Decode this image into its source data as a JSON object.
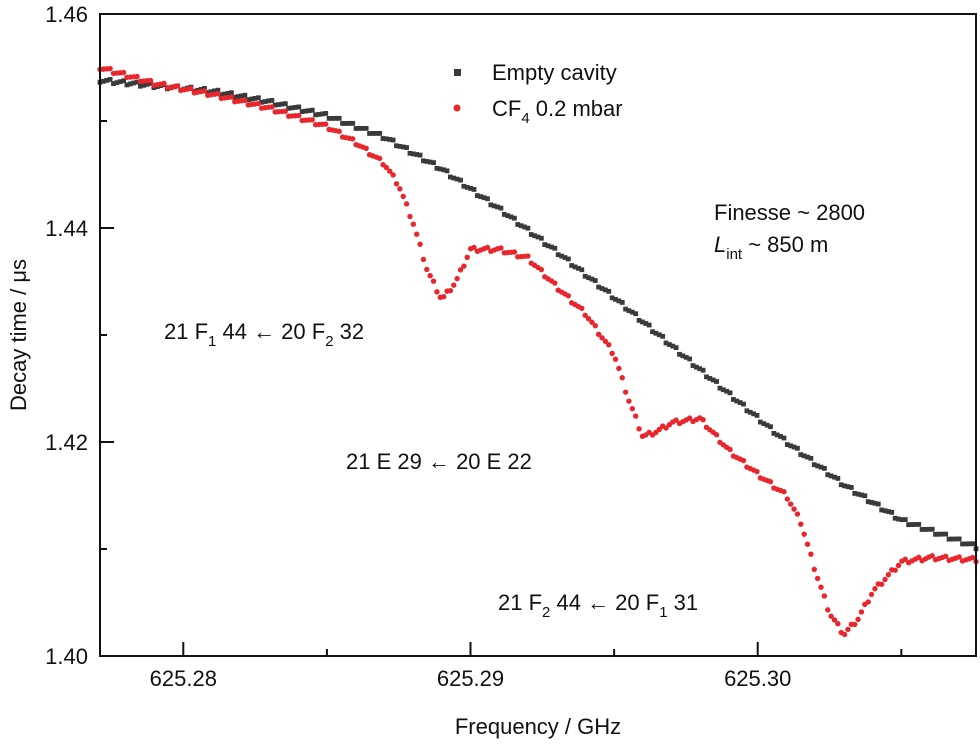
{
  "chart_data": {
    "type": "scatter",
    "xlabel": "Frequency / GHz",
    "ylabel": "Decay time / μs",
    "xlim": [
      625.2771,
      625.3076
    ],
    "ylim": [
      1.4,
      1.46
    ],
    "x_ticks": [
      625.28,
      625.29,
      625.3
    ],
    "x_tick_labels": [
      "625.28",
      "625.29",
      "625.30"
    ],
    "y_ticks": [
      1.4,
      1.42,
      1.44,
      1.46
    ],
    "y_tick_labels": [
      "1.40",
      "1.42",
      "1.44",
      "1.46"
    ],
    "legend": {
      "placement": "top-center"
    },
    "series": [
      {
        "name": "Empty cavity",
        "legend_label": {
          "main": "Empty cavity",
          "sub": "",
          "rest": ""
        },
        "color": "#3a3a3a",
        "marker": "square",
        "x": [
          625.2771,
          625.279,
          625.281,
          625.283,
          625.285,
          625.287,
          625.289,
          625.291,
          625.293,
          625.295,
          625.297,
          625.299,
          625.301,
          625.303,
          625.305,
          625.3076
        ],
        "y": [
          1.4538,
          1.4533,
          1.4528,
          1.4518,
          1.4505,
          1.4485,
          1.4455,
          1.4418,
          1.4378,
          1.4335,
          1.429,
          1.4245,
          1.42,
          1.416,
          1.4127,
          1.4102
        ]
      },
      {
        "name": "CF4 0.2 mbar",
        "legend_label": {
          "main": "CF",
          "sub": "4",
          "rest": " 0.2 mbar"
        },
        "color": "#e8262c",
        "marker": "circle",
        "x": [
          625.2771,
          625.279,
          625.281,
          625.283,
          625.285,
          625.286,
          625.287,
          625.2875,
          625.288,
          625.2885,
          625.289,
          625.2895,
          625.29,
          625.291,
          625.292,
          625.293,
          625.294,
          625.295,
          625.2955,
          625.296,
          625.2965,
          625.297,
          625.298,
          625.299,
          625.3,
          625.301,
          625.3015,
          625.302,
          625.3025,
          625.303,
          625.3035,
          625.304,
          625.305,
          625.306,
          625.3076
        ],
        "y": [
          1.455,
          1.4535,
          1.4525,
          1.4512,
          1.4495,
          1.448,
          1.446,
          1.444,
          1.4405,
          1.436,
          1.4333,
          1.435,
          1.438,
          1.438,
          1.4372,
          1.4345,
          1.432,
          1.4282,
          1.424,
          1.4205,
          1.421,
          1.4218,
          1.4222,
          1.4192,
          1.417,
          1.415,
          1.4125,
          1.408,
          1.404,
          1.402,
          1.4035,
          1.406,
          1.4088,
          1.4092,
          1.409
        ]
      }
    ],
    "annotations": [
      {
        "parts": [
          {
            "t": "Finesse ~ 2800",
            "s": "normal"
          }
        ]
      },
      {
        "parts": [
          {
            "t": "L",
            "s": "italic"
          },
          {
            "t": "int",
            "s": "sub"
          },
          {
            "t": " ~ 850 m",
            "s": "normal"
          }
        ]
      },
      {
        "parts": [
          {
            "t": "21 F",
            "s": "normal"
          },
          {
            "t": "1",
            "s": "sub"
          },
          {
            "t": " 44 ← 20 F",
            "s": "normal"
          },
          {
            "t": "2",
            "s": "sub"
          },
          {
            "t": " 32",
            "s": "normal"
          }
        ]
      },
      {
        "parts": [
          {
            "t": "21 E 29 ← 20 E 22",
            "s": "normal"
          }
        ]
      },
      {
        "parts": [
          {
            "t": "21 F",
            "s": "normal"
          },
          {
            "t": "2",
            "s": "sub"
          },
          {
            "t": " 44 ← 20 F",
            "s": "normal"
          },
          {
            "t": "1",
            "s": "sub"
          },
          {
            "t": " 31",
            "s": "normal"
          }
        ]
      }
    ]
  }
}
